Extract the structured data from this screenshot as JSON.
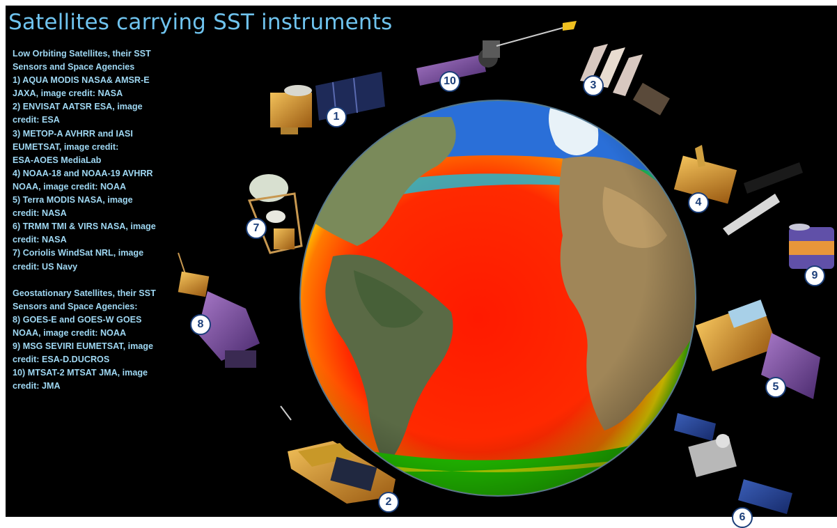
{
  "title": "Satellites carrying SST instruments",
  "legend": {
    "low_orbit_lines": [
      "Low Orbiting Satellites, their SST",
      "Sensors and Space Agencies",
      "1)  AQUA MODIS NASA& AMSR-E",
      "JAXA, image credit:  NASA",
      "2)  ENVISAT AATSR ESA, image",
      "credit:  ESA",
      "3)  METOP-A AVHRR and IASI",
      "EUMETSAT, image credit:",
      "ESA-AOES MediaLab",
      "4)  NOAA-18 and NOAA-19 AVHRR",
      "NOAA, image credit:  NOAA",
      "5)  Terra MODIS NASA, image",
      "credit:  NASA",
      "6)  TRMM TMI & VIRS NASA, image",
      "credit:  NASA",
      "7)  Coriolis WindSat NRL, image",
      "credit:  US Navy"
    ],
    "geo_lines": [
      "Geostationary Satellites, their SST",
      "Sensors and Space Agencies:",
      "8)  GOES-E and GOES-W GOES",
      "NOAA, image credit:  NOAA",
      "9)  MSG SEVIRI EUMETSAT, image",
      "credit: ESA-D.DUCROS",
      "10)  MTSAT-2 MTSAT JMA, image",
      "credit:  JMA"
    ]
  },
  "satellite_badges": [
    "1",
    "2",
    "3",
    "4",
    "5",
    "6",
    "7",
    "8",
    "9",
    "10"
  ],
  "colors": {
    "title": "#6fc3ee",
    "legend_text": "#9fd8f3",
    "background": "#000000",
    "badge_fill": "#ffffff",
    "badge_text": "#1c3f7a"
  }
}
